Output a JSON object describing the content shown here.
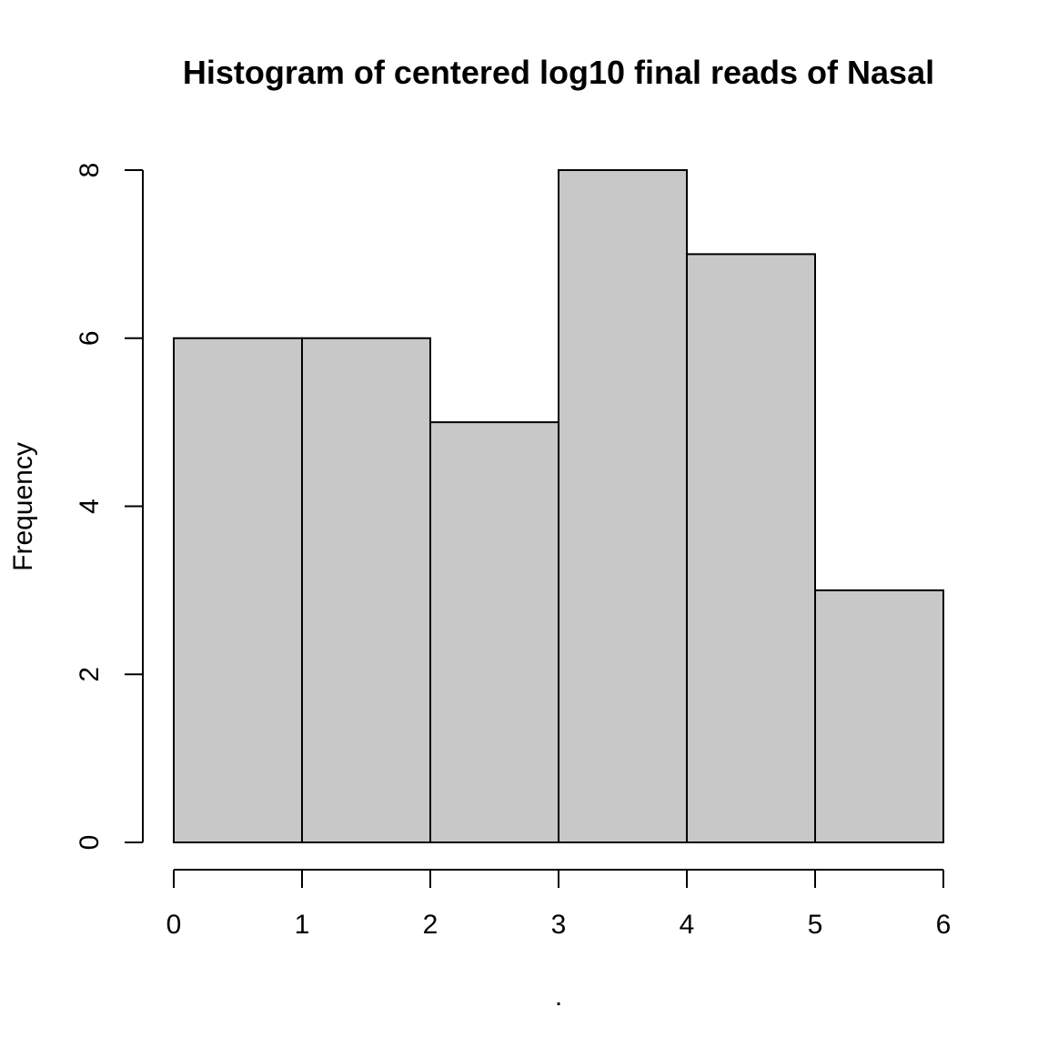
{
  "chart_data": {
    "type": "bar",
    "title": "Histogram of centered log10 final reads of Nasal",
    "xlabel": ".",
    "ylabel": "Frequency",
    "bins": [
      [
        0,
        1
      ],
      [
        1,
        2
      ],
      [
        2,
        3
      ],
      [
        3,
        4
      ],
      [
        4,
        5
      ],
      [
        5,
        6
      ]
    ],
    "values": [
      6,
      6,
      5,
      8,
      7,
      3
    ],
    "x_ticks": [
      "0",
      "1",
      "2",
      "3",
      "4",
      "5",
      "6"
    ],
    "y_ticks": [
      "0",
      "2",
      "4",
      "6",
      "8"
    ],
    "xlim": [
      0,
      6
    ],
    "ylim": [
      0,
      8
    ],
    "bar_color": "#c8c8c8",
    "grid": false
  }
}
